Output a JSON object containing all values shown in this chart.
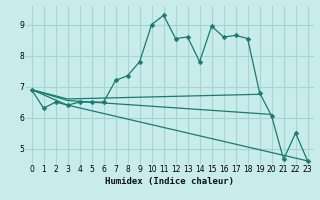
{
  "title": "",
  "xlabel": "Humidex (Indice chaleur)",
  "bg_color": "#c8ecec",
  "grid_color": "#a8d4d4",
  "line_color": "#1a7a6e",
  "xlim": [
    -0.5,
    23.5
  ],
  "ylim": [
    4.5,
    9.6
  ],
  "xticks": [
    0,
    1,
    2,
    3,
    4,
    5,
    6,
    7,
    8,
    9,
    10,
    11,
    12,
    13,
    14,
    15,
    16,
    17,
    18,
    19,
    20,
    21,
    22,
    23
  ],
  "yticks": [
    5,
    6,
    7,
    8,
    9
  ],
  "series1_x": [
    0,
    1,
    2,
    3,
    4,
    5,
    6,
    7,
    8,
    9,
    10,
    11,
    12,
    13,
    14,
    15,
    16,
    17,
    18,
    19,
    20,
    21,
    22,
    23
  ],
  "series1_y": [
    6.9,
    6.3,
    6.5,
    6.4,
    6.5,
    6.5,
    6.5,
    7.2,
    7.35,
    7.8,
    9.0,
    9.3,
    8.55,
    8.6,
    7.8,
    8.95,
    8.6,
    8.65,
    8.55,
    6.8,
    6.05,
    4.65,
    5.5,
    4.6
  ],
  "series2_x": [
    0,
    3,
    19
  ],
  "series2_y": [
    6.9,
    6.6,
    6.75
  ],
  "series3_x": [
    0,
    3,
    20
  ],
  "series3_y": [
    6.9,
    6.55,
    6.1
  ],
  "series4_x": [
    0,
    3,
    23
  ],
  "series4_y": [
    6.9,
    6.4,
    4.6
  ]
}
